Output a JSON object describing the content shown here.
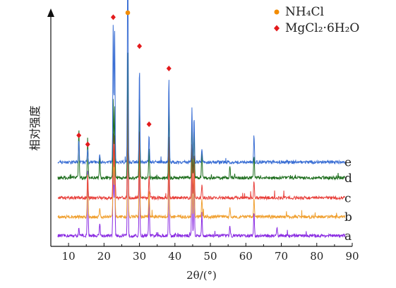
{
  "chart_data": {
    "type": "line",
    "xlabel": "2θ/(°)",
    "ylabel": "相对强度",
    "xlim": [
      5,
      90
    ],
    "xticks": [
      10,
      20,
      30,
      40,
      50,
      60,
      70,
      80,
      90
    ],
    "legend_position": "top-right",
    "legend": [
      {
        "name": "NH₄Cl",
        "marker": "circle",
        "color": "#f28c00"
      },
      {
        "name": "MgCl₂·6H₂O",
        "marker": "diamond",
        "color": "#e31a1c"
      }
    ],
    "series": [
      {
        "name": "a",
        "color": "#8a2be2",
        "baseline": 0.0,
        "peaks": [
          [
            12.9,
            0.03
          ],
          [
            15.4,
            0.3
          ],
          [
            18.8,
            0.06
          ],
          [
            22.6,
            0.38
          ],
          [
            23.0,
            0.36
          ],
          [
            26.7,
            0.6
          ],
          [
            30.0,
            0.38
          ],
          [
            32.7,
            0.18
          ],
          [
            38.3,
            0.34
          ],
          [
            44.8,
            0.32
          ],
          [
            45.4,
            0.26
          ],
          [
            47.6,
            0.1
          ],
          [
            55.5,
            0.05
          ],
          [
            62.3,
            0.1
          ],
          [
            68.8,
            0.04
          ]
        ]
      },
      {
        "name": "b",
        "color": "#f0a030",
        "baseline": 0.085,
        "peaks": [
          [
            15.4,
            0.2
          ],
          [
            18.8,
            0.04
          ],
          [
            22.6,
            0.32
          ],
          [
            23.0,
            0.3
          ],
          [
            26.7,
            0.56
          ],
          [
            30.0,
            0.34
          ],
          [
            32.7,
            0.12
          ],
          [
            38.3,
            0.3
          ],
          [
            44.8,
            0.28
          ],
          [
            45.4,
            0.22
          ],
          [
            47.6,
            0.08
          ],
          [
            55.5,
            0.04
          ],
          [
            62.3,
            0.08
          ]
        ]
      },
      {
        "name": "c",
        "color": "#e8413c",
        "baseline": 0.17,
        "peaks": [
          [
            15.4,
            0.1
          ],
          [
            22.6,
            0.3
          ],
          [
            23.0,
            0.28
          ],
          [
            26.7,
            0.6
          ],
          [
            30.0,
            0.32
          ],
          [
            32.7,
            0.1
          ],
          [
            38.3,
            0.28
          ],
          [
            44.8,
            0.24
          ],
          [
            45.4,
            0.2
          ],
          [
            47.6,
            0.06
          ],
          [
            62.3,
            0.08
          ]
        ]
      },
      {
        "name": "d",
        "color": "#1e6e1e",
        "baseline": 0.26,
        "peaks": [
          [
            12.9,
            0.22
          ],
          [
            15.4,
            0.18
          ],
          [
            18.8,
            0.1
          ],
          [
            22.6,
            0.34
          ],
          [
            23.0,
            0.32
          ],
          [
            26.7,
            0.56
          ],
          [
            30.0,
            0.38
          ],
          [
            32.7,
            0.14
          ],
          [
            38.3,
            0.32
          ],
          [
            44.8,
            0.26
          ],
          [
            45.4,
            0.22
          ],
          [
            47.6,
            0.12
          ],
          [
            55.5,
            0.05
          ],
          [
            62.3,
            0.1
          ]
        ]
      },
      {
        "name": "e",
        "color": "#3b6fd4",
        "baseline": 0.33,
        "peaks": [
          [
            12.9,
            0.1
          ],
          [
            15.4,
            0.06
          ],
          [
            18.8,
            0.04
          ],
          [
            22.6,
            0.64
          ],
          [
            23.0,
            0.6
          ],
          [
            26.7,
            1.0
          ],
          [
            30.0,
            0.42
          ],
          [
            32.7,
            0.12
          ],
          [
            38.3,
            0.38
          ],
          [
            44.8,
            0.24
          ],
          [
            45.4,
            0.2
          ],
          [
            47.6,
            0.06
          ],
          [
            62.3,
            0.12
          ]
        ]
      }
    ],
    "markers": [
      {
        "x": 26.7,
        "y": 1.0,
        "marker": "circle",
        "color": "#f28c00"
      },
      {
        "x": 12.9,
        "y": 0.45,
        "marker": "diamond",
        "color": "#e31a1c"
      },
      {
        "x": 15.4,
        "y": 0.41,
        "marker": "diamond",
        "color": "#e31a1c"
      },
      {
        "x": 22.6,
        "y": 0.98,
        "marker": "diamond",
        "color": "#e31a1c"
      },
      {
        "x": 30.0,
        "y": 0.85,
        "marker": "diamond",
        "color": "#e31a1c"
      },
      {
        "x": 32.7,
        "y": 0.5,
        "marker": "diamond",
        "color": "#e31a1c"
      },
      {
        "x": 38.3,
        "y": 0.75,
        "marker": "diamond",
        "color": "#e31a1c"
      }
    ]
  }
}
